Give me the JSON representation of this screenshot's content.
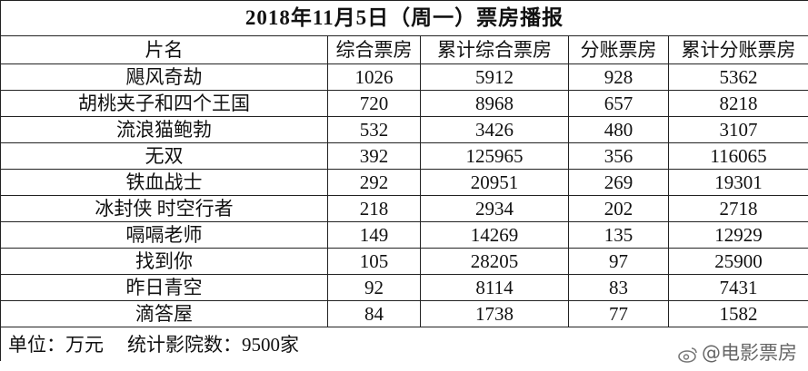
{
  "header": {
    "title": "2018年11月5日（周一）票房播报"
  },
  "table": {
    "columns": [
      "片名",
      "综合票房",
      "累计综合票房",
      "分账票房",
      "累计分账票房"
    ],
    "rows": [
      [
        "飓风奇劫",
        1026,
        5912,
        928,
        5362
      ],
      [
        "胡桃夹子和四个王国",
        720,
        8968,
        657,
        8218
      ],
      [
        "流浪猫鲍勃",
        532,
        3426,
        480,
        3107
      ],
      [
        "无双",
        392,
        125965,
        356,
        116065
      ],
      [
        "铁血战士",
        292,
        20951,
        269,
        19301
      ],
      [
        "冰封侠 时空行者",
        218,
        2934,
        202,
        2718
      ],
      [
        "嗝嗝老师",
        149,
        14269,
        135,
        12929
      ],
      [
        "找到你",
        105,
        28205,
        97,
        25900
      ],
      [
        "昨日青空",
        92,
        8114,
        83,
        7431
      ],
      [
        "滴答屋",
        84,
        1738,
        77,
        1582
      ]
    ]
  },
  "footer": {
    "unit": "单位：万元",
    "cinemas": "统计影院数：9500家"
  },
  "watermark": "@电影票房"
}
